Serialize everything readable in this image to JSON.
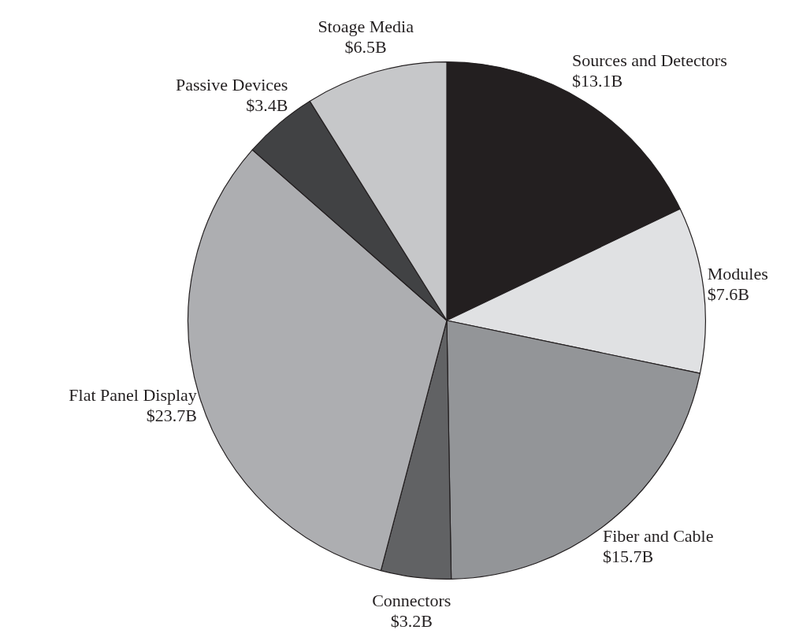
{
  "chart_data": {
    "type": "pie",
    "categories": [
      "Sources and Detectors",
      "Modules",
      "Fiber and Cable",
      "Connectors",
      "Flat Panel Display",
      "Passive Devices",
      "Stoage Media"
    ],
    "values": [
      13.1,
      7.6,
      15.7,
      3.2,
      23.7,
      3.4,
      6.5
    ],
    "value_labels": [
      "$13.1B",
      "$7.6B",
      "$15.7B",
      "$3.2B",
      "$23.7B",
      "$3.4B",
      "$6.5B"
    ],
    "colors": [
      "#231f20",
      "#e0e1e3",
      "#939598",
      "#616264",
      "#adaeb1",
      "#414244",
      "#c6c7c9"
    ],
    "legend": false
  }
}
